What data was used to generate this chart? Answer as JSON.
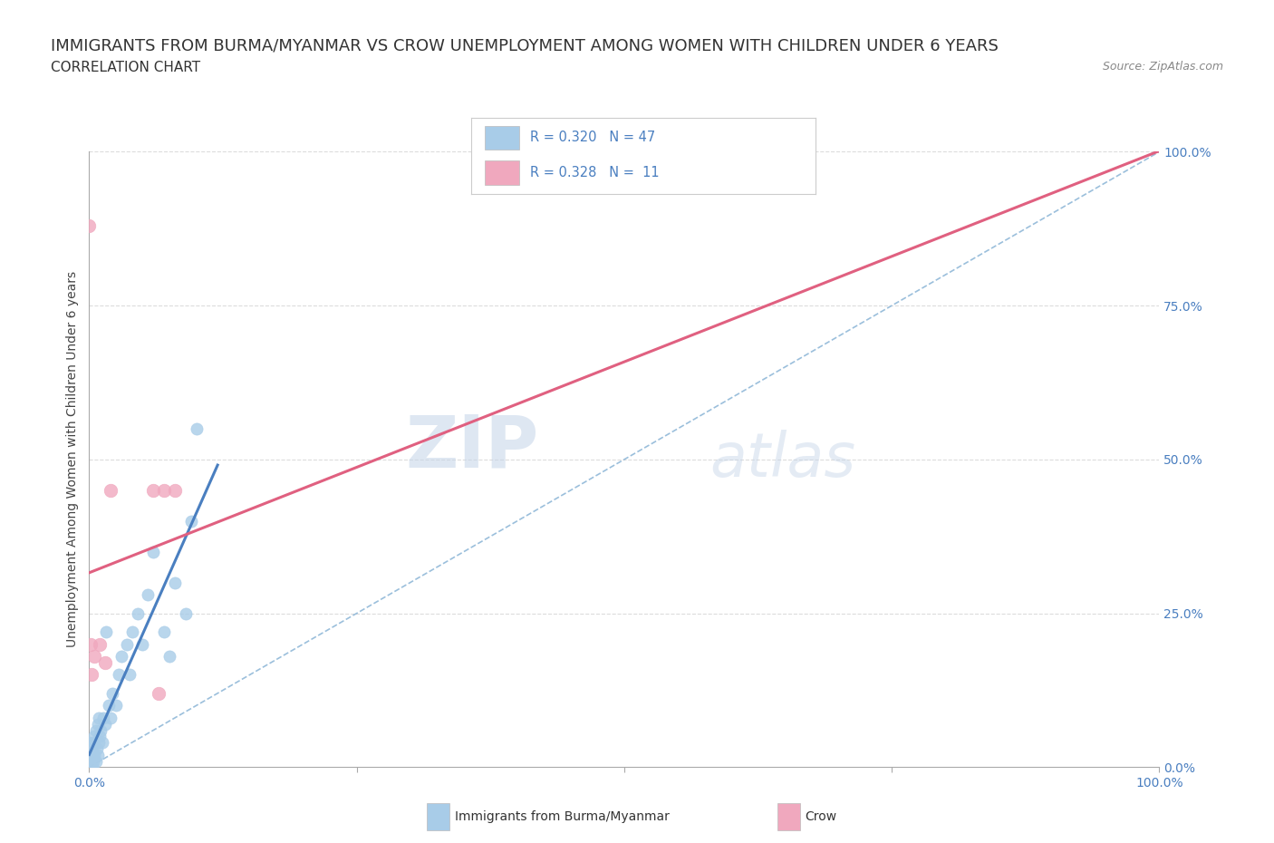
{
  "title_line1": "IMMIGRANTS FROM BURMA/MYANMAR VS CROW UNEMPLOYMENT AMONG WOMEN WITH CHILDREN UNDER 6 YEARS",
  "title_line2": "CORRELATION CHART",
  "source_text": "Source: ZipAtlas.com",
  "ylabel": "Unemployment Among Women with Children Under 6 years",
  "watermark_zip": "ZIP",
  "watermark_atlas": "atlas",
  "legend_blue_text": "R = 0.320   N = 47",
  "legend_pink_text": "R = 0.328   N =  11",
  "legend_label_blue": "Immigrants from Burma/Myanmar",
  "legend_label_pink": "Crow",
  "blue_scatter_color": "#A8CCE8",
  "pink_scatter_color": "#F0A8BE",
  "blue_line_color": "#4A7FC0",
  "pink_line_color": "#E06080",
  "diagonal_color": "#90B8D8",
  "legend_text_color": "#4A7FC0",
  "ytick_color": "#4A7FC0",
  "xtick_color": "#4A7FC0",
  "background_color": "#FFFFFF",
  "grid_color": "#CCCCCC",
  "title_fontsize": 13,
  "subtitle_fontsize": 11,
  "axis_label_fontsize": 10,
  "tick_fontsize": 10,
  "blue_scatter_x": [
    0.0,
    0.0,
    0.0,
    0.0,
    0.0,
    0.001,
    0.001,
    0.002,
    0.002,
    0.003,
    0.003,
    0.004,
    0.004,
    0.005,
    0.005,
    0.006,
    0.006,
    0.007,
    0.008,
    0.008,
    0.009,
    0.009,
    0.01,
    0.011,
    0.012,
    0.013,
    0.015,
    0.016,
    0.018,
    0.02,
    0.022,
    0.025,
    0.028,
    0.03,
    0.035,
    0.038,
    0.04,
    0.045,
    0.05,
    0.055,
    0.06,
    0.07,
    0.075,
    0.08,
    0.09,
    0.095,
    0.1
  ],
  "blue_scatter_y": [
    0.0,
    0.01,
    0.02,
    0.03,
    0.04,
    0.0,
    0.02,
    0.01,
    0.03,
    0.0,
    0.02,
    0.01,
    0.04,
    0.02,
    0.05,
    0.01,
    0.06,
    0.03,
    0.02,
    0.07,
    0.04,
    0.08,
    0.05,
    0.06,
    0.04,
    0.08,
    0.07,
    0.22,
    0.1,
    0.08,
    0.12,
    0.1,
    0.15,
    0.18,
    0.2,
    0.15,
    0.22,
    0.25,
    0.2,
    0.28,
    0.35,
    0.22,
    0.18,
    0.3,
    0.25,
    0.4,
    0.55
  ],
  "pink_scatter_x": [
    0.0,
    0.001,
    0.002,
    0.005,
    0.01,
    0.015,
    0.02,
    0.06,
    0.065,
    0.07,
    0.08
  ],
  "pink_scatter_y": [
    0.88,
    0.2,
    0.15,
    0.18,
    0.2,
    0.17,
    0.45,
    0.45,
    0.12,
    0.45,
    0.45
  ],
  "xlim": [
    0,
    1.0
  ],
  "ylim": [
    0,
    1.0
  ],
  "x_ticks_minor": [
    0.25,
    0.5,
    0.75
  ],
  "y_ticks": [
    0.0,
    0.25,
    0.5,
    0.75,
    1.0
  ],
  "y_tick_labels": [
    "0.0%",
    "25.0%",
    "50.0%",
    "75.0%",
    "100.0%"
  ]
}
